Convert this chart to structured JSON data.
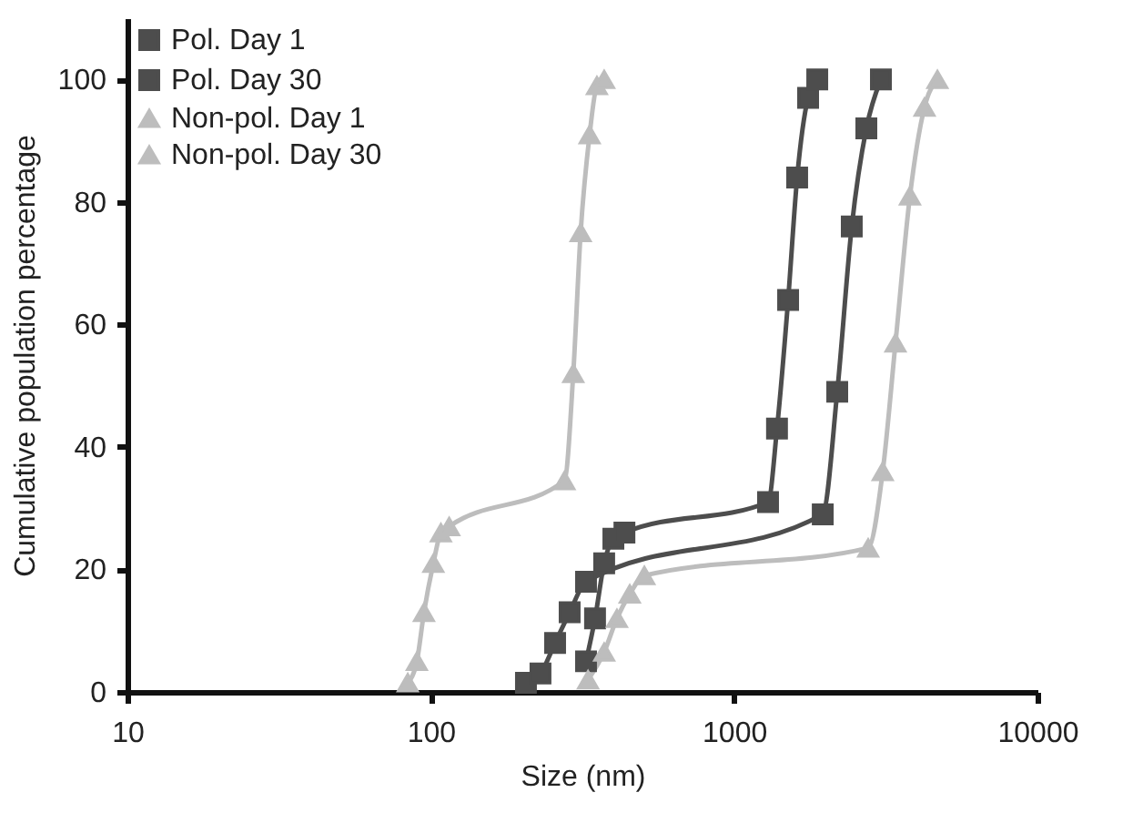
{
  "chart_data": {
    "type": "line",
    "xlabel": "Size (nm)",
    "ylabel": "Cumulative population percentage",
    "log": "x",
    "xlim": [
      10,
      10000
    ],
    "xticks": [
      10,
      100,
      1000,
      10000
    ],
    "ylim": [
      0,
      110
    ],
    "yticks": [
      0,
      20,
      40,
      60,
      80,
      100
    ],
    "grid": false,
    "legend": "top left",
    "line_style": "solid",
    "series": [
      {
        "name": "Pol. Day 1",
        "color": "#4d4d4d",
        "marker": "square",
        "x": [
          325,
          348,
          373,
          400,
          435,
          1294,
          1385,
          1507,
          1614,
          1754,
          1880
        ],
        "values": [
          5,
          12,
          21,
          25,
          26,
          31,
          43,
          64,
          84,
          97,
          100
        ]
      },
      {
        "name": "Pol. Day 30",
        "color": "#4d4d4d",
        "marker": "square",
        "x": [
          206,
          230,
          257,
          287,
          325,
          1960,
          2188,
          2443,
          2729,
          3048
        ],
        "values": [
          1.5,
          3,
          8,
          13,
          18,
          29,
          49,
          76,
          92,
          100
        ]
      },
      {
        "name": "Non-pol. Day 1",
        "color": "#bdbdbd",
        "marker": "triangle",
        "x": [
          84,
          90,
          95,
          102,
          108,
          115,
          276,
          295,
          312,
          334,
          353,
          373
        ],
        "values": [
          1.5,
          5,
          13,
          21,
          26,
          27,
          34.5,
          52,
          75,
          91,
          99,
          100
        ]
      },
      {
        "name": "Non-pol. Day 30",
        "color": "#bdbdbd",
        "marker": "triangle",
        "x": [
          330,
          373,
          411,
          453,
          506,
          2767,
          3090,
          3405,
          3800,
          4245,
          4680
        ],
        "values": [
          2,
          6.5,
          12,
          16,
          19,
          23.5,
          36,
          57,
          81,
          95.5,
          100
        ]
      }
    ]
  }
}
